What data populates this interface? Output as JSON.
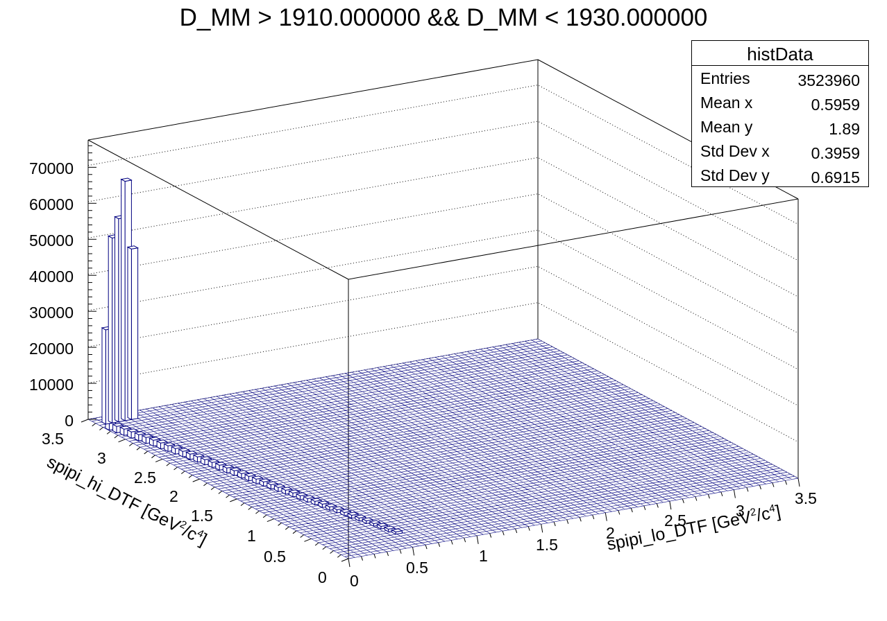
{
  "chart_data": {
    "type": "lego3d",
    "title": "D_MM > 1910.000000 && D_MM < 1930.000000",
    "xlabel": {
      "name": "spipi_lo_DTF",
      "unit_base": "[GeV",
      "sup1": "2",
      "mid": "/c",
      "sup2": "4",
      "end": "]"
    },
    "ylabel": {
      "name": "spipi_hi_DTF",
      "unit_base": "[GeV",
      "sup1": "2",
      "mid": "/c",
      "sup2": "4",
      "end": "]"
    },
    "xlim": [
      0,
      3.5
    ],
    "ylim": [
      0,
      3.5
    ],
    "zlim": [
      0,
      77000
    ],
    "z_ticks": [
      "0",
      "10000",
      "20000",
      "30000",
      "40000",
      "50000",
      "60000",
      "70000"
    ],
    "x_ticks": [
      "0",
      "0.5",
      "1",
      "1.5",
      "2",
      "2.5",
      "3",
      "3.5"
    ],
    "y_ticks": [
      "0",
      "0.5",
      "1",
      "1.5",
      "2",
      "2.5",
      "3",
      "3.5"
    ],
    "bins": 70,
    "line_color": "#000080",
    "tall_bins": [
      {
        "x": 0.075,
        "y": 3.375,
        "value": 26000
      },
      {
        "x": 0.125,
        "y": 3.375,
        "value": 51000
      },
      {
        "x": 0.175,
        "y": 3.375,
        "value": 56000
      },
      {
        "x": 0.225,
        "y": 3.375,
        "value": 66000
      },
      {
        "x": 0.275,
        "y": 3.375,
        "value": 47000
      }
    ],
    "stats": {
      "name": "histData",
      "rows": [
        {
          "label": "Entries",
          "value": "3523960"
        },
        {
          "label": "Mean x",
          "value": "0.5959"
        },
        {
          "label": "Mean y",
          "value": "1.89"
        },
        {
          "label": "Std Dev x",
          "value": "0.3959"
        },
        {
          "label": "Std Dev y",
          "value": "0.6915"
        }
      ]
    }
  }
}
